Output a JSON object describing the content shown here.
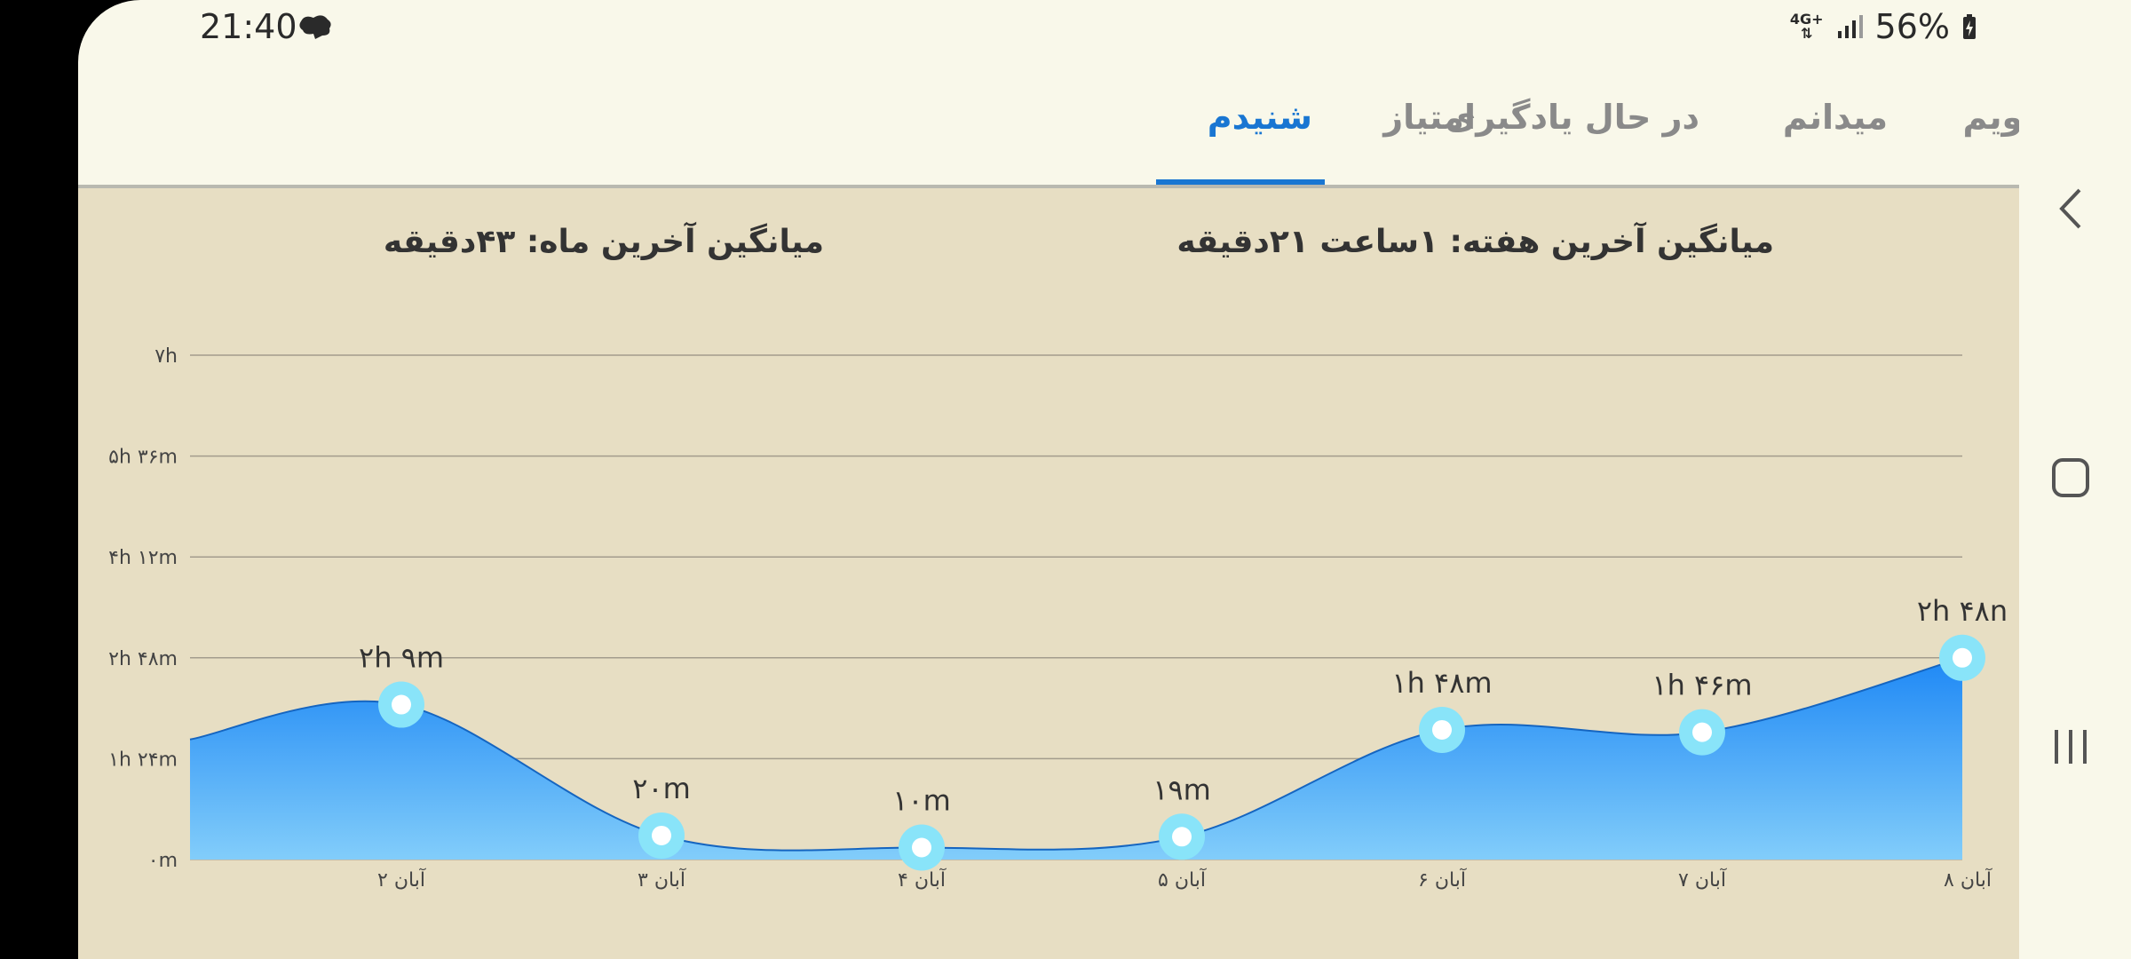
{
  "status_bar": {
    "time": "21:40",
    "network": "4G+",
    "battery": "56%"
  },
  "tabs": [
    {
      "label": "تقویم",
      "active": false
    },
    {
      "label": "میدانم",
      "active": false
    },
    {
      "label": "در حال یادگیری",
      "active": false
    },
    {
      "label": "امتیاز",
      "active": false
    },
    {
      "label": "شنیدم",
      "active": true
    }
  ],
  "stats": {
    "weekly_avg": "میانگین آخرین هفته: ۱ساعت  ۲۱دقیقه",
    "monthly_avg": "میانگین آخرین ماه: ۴۳دقیقه"
  },
  "colors": {
    "accent": "#1976d2",
    "area_top": "#1e88f5",
    "area_bottom": "#82cdfa",
    "marker": "#89e4f9"
  },
  "chart_data": {
    "type": "area",
    "y_tick_labels": [
      "۰m",
      "۱h ۲۴m",
      "۲h ۴۸m",
      "۴h ۱۲m",
      "۵h ۳۶m",
      "۷h"
    ],
    "ylim": [
      0,
      420
    ],
    "grid": true,
    "x_start_value": 100,
    "categories": [
      "۲ آبان",
      "۳ آبان",
      "۴ آبان",
      "۵ آبان",
      "۶ آبان",
      "۷ آبان",
      "۸ آبان"
    ],
    "values": [
      129,
      20,
      10,
      19,
      108,
      106,
      168
    ],
    "value_labels": [
      "۲h ۹m",
      "۲۰m",
      "۱۰m",
      "۱۹m",
      "۱h ۴۸m",
      "۱h ۴۶m",
      "۲h ۴۸n"
    ]
  }
}
